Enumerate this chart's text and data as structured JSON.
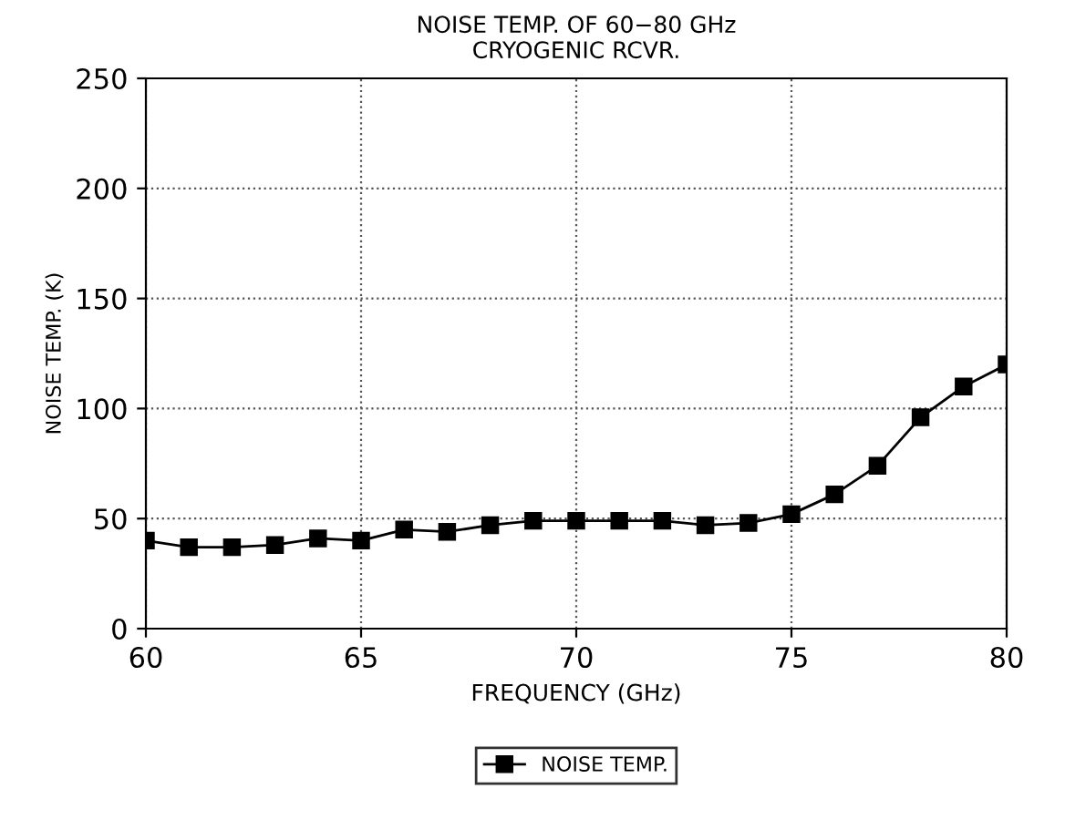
{
  "chart_data": {
    "type": "line",
    "title": "NOISE TEMP. OF 60−80 GHz\nCRYOGENIC RCVR.",
    "xlabel": "FREQUENCY (GHz)",
    "ylabel": "NOISE TEMP. (K)",
    "x": [
      60,
      61,
      62,
      63,
      64,
      65,
      66,
      67,
      68,
      69,
      70,
      71,
      72,
      73,
      74,
      75,
      76,
      77,
      78,
      79,
      80
    ],
    "series": [
      {
        "name": "NOISE TEMP.",
        "color": "#000000",
        "values": [
          40,
          37,
          37,
          38,
          41,
          40,
          45,
          44,
          47,
          49,
          49,
          49,
          49,
          47,
          48,
          52,
          61,
          74,
          96,
          110,
          120
        ]
      }
    ],
    "xlim": [
      60,
      80
    ],
    "xticks": [
      60,
      65,
      70,
      75,
      80
    ],
    "ylim": [
      0,
      250
    ],
    "yticks": [
      0,
      50,
      100,
      150,
      200,
      250
    ],
    "grid": true,
    "legend": "bottom",
    "marker": "square",
    "line_style": "solid"
  }
}
